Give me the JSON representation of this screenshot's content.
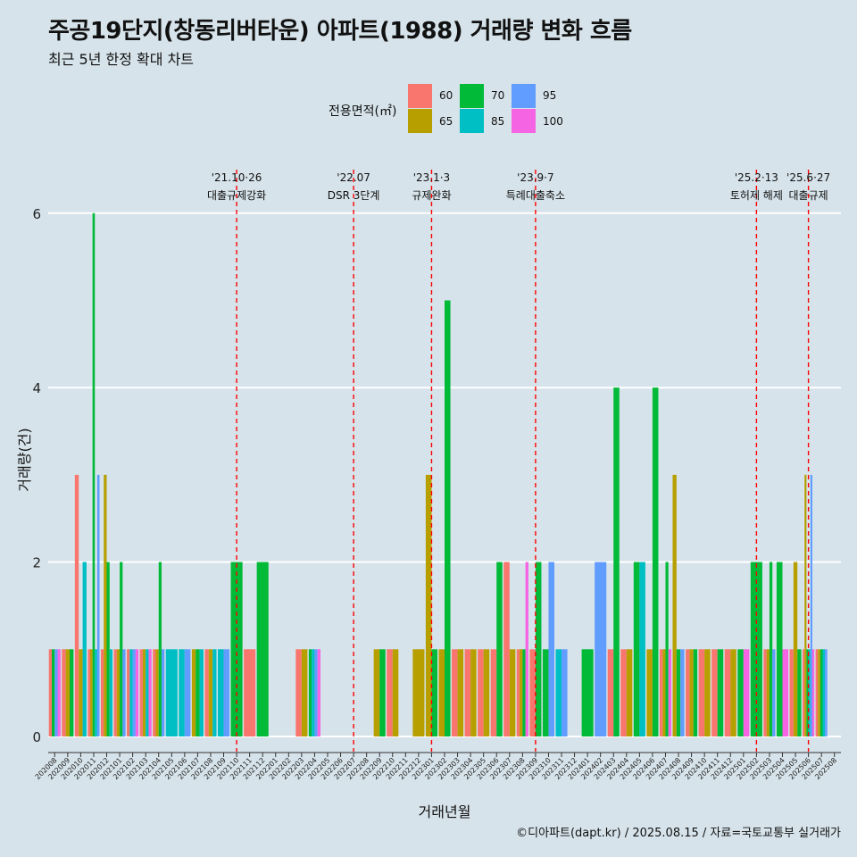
{
  "title": "주공19단지(창동리버타운) 아파트(1988) 거래량 변화 흐름",
  "subtitle": "최근 5년 한정 확대 차트",
  "caption": "©디아파트(dapt.kr) / 2025.08.15 / 자료=국토교통부 실거래가",
  "legend": {
    "title": "전용면적(㎡)",
    "items": [
      {
        "label": "60",
        "color": "#f8766d"
      },
      {
        "label": "65",
        "color": "#b79f00"
      },
      {
        "label": "70",
        "color": "#00ba38"
      },
      {
        "label": "85",
        "color": "#00bfc4"
      },
      {
        "label": "95",
        "color": "#619cff"
      },
      {
        "label": "100",
        "color": "#f564e3"
      }
    ]
  },
  "chart_data": {
    "type": "bar",
    "xlabel": "거래년월",
    "ylabel": "거래량(건)",
    "ylim": [
      0,
      6
    ],
    "yticks": [
      0,
      2,
      4,
      6
    ],
    "grid": true,
    "legend_position": "top",
    "categories": [
      "202008",
      "202009",
      "202010",
      "202011",
      "202012",
      "202101",
      "202102",
      "202103",
      "202104",
      "202105",
      "202106",
      "202107",
      "202108",
      "202109",
      "202110",
      "202111",
      "202112",
      "202201",
      "202202",
      "202203",
      "202204",
      "202205",
      "202206",
      "202207",
      "202208",
      "202209",
      "202210",
      "202211",
      "202212",
      "202301",
      "202302",
      "202303",
      "202304",
      "202305",
      "202306",
      "202307",
      "202308",
      "202309",
      "202310",
      "202311",
      "202312",
      "202401",
      "202402",
      "202403",
      "202404",
      "202405",
      "202406",
      "202407",
      "202408",
      "202409",
      "202410",
      "202411",
      "202412",
      "202501",
      "202502",
      "202503",
      "202504",
      "202505",
      "202506",
      "202507",
      "202508"
    ],
    "series": [
      {
        "name": "60",
        "color": "#f8766d",
        "values": {
          "202008": 1,
          "202009": 1,
          "202010": 3,
          "202011": 1,
          "202012": 1,
          "202101": 1,
          "202102": 1,
          "202103": 1,
          "202104": 1,
          "202108": 1,
          "202111": 1,
          "202203": 1,
          "202210": 1,
          "202303": 1,
          "202304": 1,
          "202305": 1,
          "202306": 1,
          "202307": 2,
          "202308": 1,
          "202309": 1,
          "202403": 1,
          "202404": 1,
          "202407": 1,
          "202409": 1,
          "202410": 1,
          "202411": 1,
          "202412": 1,
          "202503": 1,
          "202505": 1,
          "202506": 1,
          "202507": 1
        }
      },
      {
        "name": "65",
        "color": "#b79f00",
        "values": {
          "202009": 1,
          "202010": 1,
          "202011": 1,
          "202012": 3,
          "202101": 1,
          "202103": 1,
          "202104": 1,
          "202107": 1,
          "202108": 1,
          "202203": 1,
          "202209": 1,
          "202210": 1,
          "202212": 1,
          "202301": 3,
          "202302": 1,
          "202303": 1,
          "202304": 1,
          "202305": 1,
          "202307": 1,
          "202308": 1,
          "202404": 1,
          "202406": 1,
          "202407": 1,
          "202408": 3,
          "202409": 1,
          "202410": 1,
          "202412": 1,
          "202503": 1,
          "202505": 2,
          "202506": 3,
          "202507": 1
        }
      },
      {
        "name": "70",
        "color": "#00ba38",
        "values": {
          "202008": 1,
          "202009": 1,
          "202011": 6,
          "202012": 2,
          "202101": 2,
          "202104": 2,
          "202107": 1,
          "202110": 2,
          "202112": 2,
          "202204": 1,
          "202209": 1,
          "202301": 1,
          "202302": 5,
          "202306": 2,
          "202308": 1,
          "202309": 2,
          "202310": 1,
          "202401": 1,
          "202403": 4,
          "202405": 2,
          "202406": 4,
          "202407": 2,
          "202408": 1,
          "202409": 1,
          "202411": 1,
          "202501": 1,
          "202502": 2,
          "202503": 2,
          "202504": 2,
          "202505": 1,
          "202506": 1,
          "202507": 1
        }
      },
      {
        "name": "85",
        "color": "#00bfc4",
        "values": {
          "202010": 2,
          "202011": 1,
          "202012": 1,
          "202102": 1,
          "202103": 1,
          "202105": 1,
          "202106": 1,
          "202107": 1,
          "202108": 1,
          "202109": 1,
          "202204": 1,
          "202311": 1,
          "202405": 2,
          "202506": 1,
          "202507": 1
        }
      },
      {
        "name": "95",
        "color": "#619cff",
        "values": {
          "202008": 1,
          "202011": 3,
          "202101": 1,
          "202102": 1,
          "202104": 1,
          "202106": 1,
          "202109": 1,
          "202204": 1,
          "202310": 2,
          "202311": 1,
          "202402": 2,
          "202408": 1,
          "202503": 1,
          "202506": 3,
          "202507": 1
        }
      },
      {
        "name": "100",
        "color": "#f564e3",
        "values": {
          "202008": 1,
          "202102": 1,
          "202103": 1,
          "202204": 1,
          "202308": 2,
          "202407": 1,
          "202501": 1,
          "202504": 1,
          "202506": 1
        }
      }
    ],
    "vlines": [
      {
        "x": "202110",
        "date": "'21.10·26",
        "label": "대출규제강화"
      },
      {
        "x": "202207",
        "date": "'22.07",
        "label": "DSR 3단계"
      },
      {
        "x": "202301",
        "date": "'23.1·3",
        "label": "규제완화"
      },
      {
        "x": "202309",
        "date": "'23.9·7",
        "label": "특례대출축소"
      },
      {
        "x": "202502",
        "date": "'25.2·13",
        "label": "토허제 해제"
      },
      {
        "x": "202506",
        "date": "'25.6·27",
        "label": "대출규제"
      }
    ]
  }
}
